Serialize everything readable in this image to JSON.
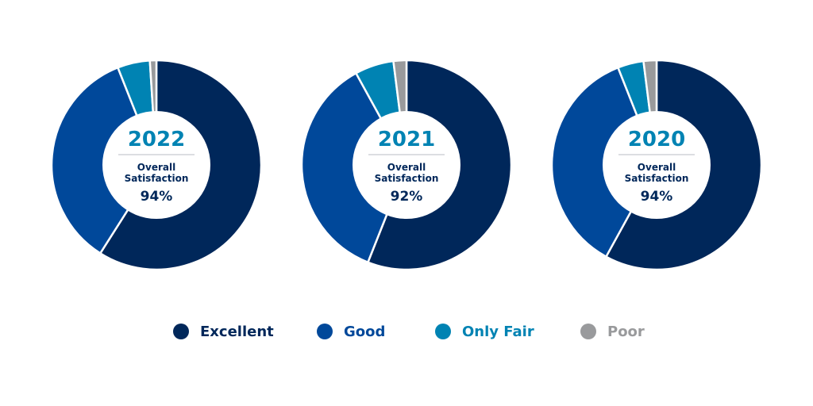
{
  "colors": {
    "excellent": "#00275a",
    "good": "#00489a",
    "only_fair": "#0083b3",
    "poor": "#999a9c",
    "year_text": "#0083b3",
    "center_text": "#00275a",
    "divider": "#b8bcc4"
  },
  "chart_data": [
    {
      "type": "pie",
      "title": "2022",
      "center_label": "Overall Satisfaction",
      "center_label_lines": [
        "Overall",
        "Satisfaction"
      ],
      "center_value": "94%",
      "categories": [
        "Excellent",
        "Good",
        "Only Fair",
        "Poor"
      ],
      "values": [
        59,
        35,
        5,
        1
      ]
    },
    {
      "type": "pie",
      "title": "2021",
      "center_label": "Overall Satisfaction",
      "center_label_lines": [
        "Overall",
        "Satisfaction"
      ],
      "center_value": "92%",
      "categories": [
        "Excellent",
        "Good",
        "Only Fair",
        "Poor"
      ],
      "values": [
        56,
        36,
        6,
        2
      ]
    },
    {
      "type": "pie",
      "title": "2020",
      "center_label": "Overall Satisfaction",
      "center_label_lines": [
        "Overall",
        "Satisfaction"
      ],
      "center_value": "94%",
      "categories": [
        "Excellent",
        "Good",
        "Only Fair",
        "Poor"
      ],
      "values": [
        58,
        36,
        4,
        2
      ]
    }
  ],
  "legend": {
    "items": [
      {
        "label": "Excellent",
        "key": "excellent"
      },
      {
        "label": "Good",
        "key": "good"
      },
      {
        "label": "Only Fair",
        "key": "only_fair"
      },
      {
        "label": "Poor",
        "key": "poor"
      }
    ]
  }
}
